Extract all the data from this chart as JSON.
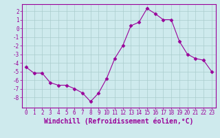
{
  "x": [
    0,
    1,
    2,
    3,
    4,
    5,
    6,
    7,
    8,
    9,
    10,
    11,
    12,
    13,
    14,
    15,
    16,
    17,
    18,
    19,
    20,
    21,
    22,
    23
  ],
  "y": [
    -4.5,
    -5.2,
    -5.2,
    -6.3,
    -6.6,
    -6.6,
    -7.0,
    -7.5,
    -8.5,
    -7.5,
    -5.8,
    -3.5,
    -2.0,
    0.3,
    0.7,
    2.3,
    1.7,
    1.0,
    1.0,
    -1.5,
    -3.0,
    -3.5,
    -3.7,
    -5.0
  ],
  "line_color": "#990099",
  "marker": "D",
  "markersize": 2.5,
  "linewidth": 0.8,
  "xlabel": "Windchill (Refroidissement éolien,°C)",
  "xlabel_fontsize": 7,
  "ylabel_ticks": [
    2,
    1,
    0,
    -1,
    -2,
    -3,
    -4,
    -5,
    -6,
    -7,
    -8
  ],
  "xlim": [
    -0.5,
    23.5
  ],
  "ylim": [
    -9.2,
    2.8
  ],
  "background_color": "#ceeaed",
  "grid_color": "#aacccc",
  "tick_color": "#990099",
  "tick_fontsize": 5.5,
  "spine_color": "#990099"
}
